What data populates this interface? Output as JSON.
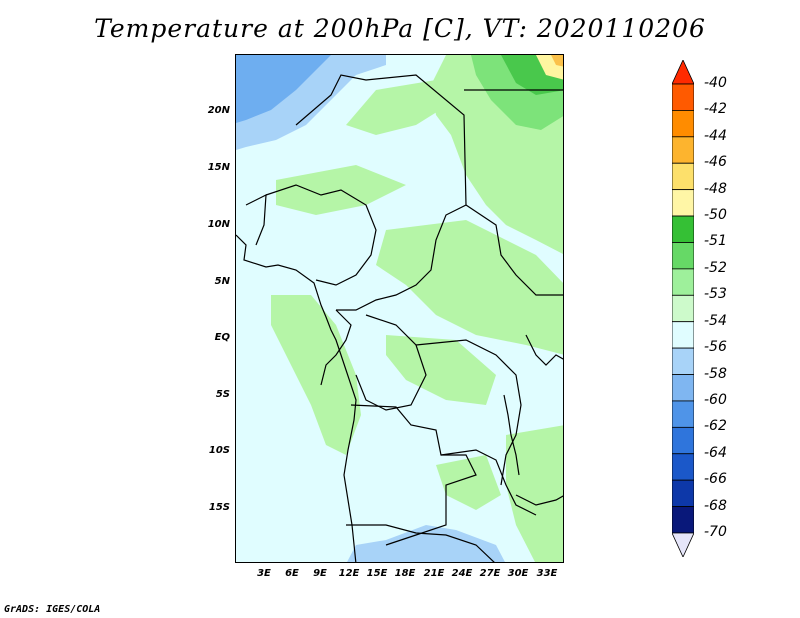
{
  "title": "Temperature at 200hPa [C], VT: 2020110206",
  "credit": "GrADS: IGES/COLA",
  "map": {
    "lat_labels": [
      "20N",
      "15N",
      "10N",
      "5N",
      "EQ",
      "5S",
      "10S",
      "15S"
    ],
    "lon_labels": [
      "3E",
      "6E",
      "9E",
      "12E",
      "15E",
      "18E",
      "21E",
      "24E",
      "27E",
      "30E",
      "33E"
    ],
    "field_colors": {
      "background_band": "#e0fdff",
      "light_green": "#b5f5a7",
      "medium_green": "#7de37a",
      "dark_green": "#49c84c",
      "light_blue": "#a8d3f8",
      "medium_blue": "#6eaef0",
      "yellow": "#fff5a0",
      "orange": "#fbc14a"
    }
  },
  "legend": {
    "labels": [
      "-40",
      "-42",
      "-44",
      "-46",
      "-48",
      "-50",
      "-51",
      "-52",
      "-53",
      "-54",
      "-56",
      "-58",
      "-60",
      "-62",
      "-64",
      "-66",
      "-68",
      "-70"
    ],
    "colors": [
      "#ff2a00",
      "#ff5a00",
      "#ff8c00",
      "#fdb42e",
      "#fde06b",
      "#fff6a6",
      "#35c035",
      "#66d966",
      "#9ef09b",
      "#cdfacb",
      "#e0fdff",
      "#a8d3f8",
      "#7fb6f1",
      "#4f94e8",
      "#2f75dc",
      "#1b58c9",
      "#0d38a9",
      "#09187a",
      "#e6e6fa"
    ]
  }
}
